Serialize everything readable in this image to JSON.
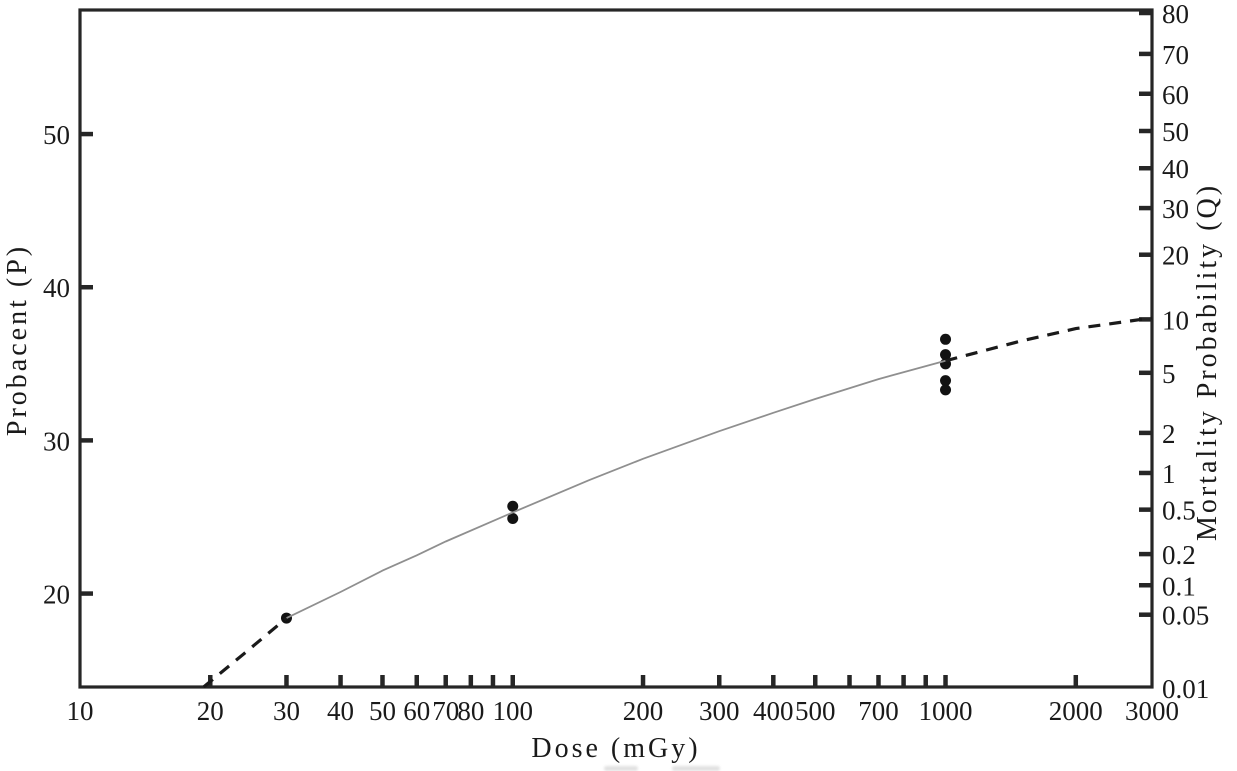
{
  "page": {
    "background": "#ffffff"
  },
  "colors": {
    "text": "#1a1a1a",
    "axis": "#262626",
    "curve": "#8f8f8f",
    "points": "#121212",
    "dash": "#1a1a1a"
  },
  "chart_data": {
    "type": "scatter",
    "title": "",
    "xlabel": "Dose (mGy)",
    "ylabel_left": "Probacent (P)",
    "ylabel_right": "Mortality Probability (Q)",
    "grid": false,
    "legend": null,
    "x_axis": {
      "scale": "log",
      "range": [
        10,
        3000
      ],
      "ticks_labeled": [
        10,
        20,
        30,
        40,
        50,
        60,
        70,
        80,
        100,
        200,
        300,
        400,
        500,
        700,
        1000,
        2000,
        3000
      ],
      "ticks_unlabeled": [
        90,
        600,
        800,
        900
      ]
    },
    "y_left_axis": {
      "scale": "linear",
      "range": [
        13.9,
        58.1
      ],
      "ticks": [
        20,
        30,
        40,
        50
      ]
    },
    "y_right_axis": {
      "scale": "probit_percent",
      "ticks": [
        80,
        70,
        60,
        50,
        40,
        30,
        20,
        10,
        5,
        2,
        1,
        0.5,
        0.2,
        0.1,
        0.05,
        0.01
      ]
    },
    "series": [
      {
        "name": "observed-mortality-points",
        "type": "scatter",
        "points": [
          {
            "dose": 30,
            "P": 18.4
          },
          {
            "dose": 100,
            "P": 25.7
          },
          {
            "dose": 100,
            "P": 24.9
          },
          {
            "dose": 1000,
            "P": 36.6
          },
          {
            "dose": 1000,
            "P": 35.6
          },
          {
            "dose": 1000,
            "P": 35.0
          },
          {
            "dose": 1000,
            "P": 33.9
          },
          {
            "dose": 1000,
            "P": 33.3
          }
        ]
      },
      {
        "name": "fitted-curve-solid",
        "type": "line",
        "style": "solid",
        "points": [
          [
            30,
            18.4
          ],
          [
            40,
            20.1
          ],
          [
            50,
            21.5
          ],
          [
            60,
            22.5
          ],
          [
            70,
            23.4
          ],
          [
            100,
            25.3
          ],
          [
            150,
            27.4
          ],
          [
            200,
            28.8
          ],
          [
            300,
            30.6
          ],
          [
            400,
            31.8
          ],
          [
            500,
            32.7
          ],
          [
            700,
            34.0
          ],
          [
            1000,
            35.2
          ]
        ]
      },
      {
        "name": "extrapolation-dashed-left",
        "type": "line",
        "style": "dashed",
        "points": [
          [
            19.3,
            13.9
          ],
          [
            24,
            16.1
          ],
          [
            30,
            18.4
          ]
        ]
      },
      {
        "name": "extrapolation-dashed-right",
        "type": "line",
        "style": "dashed",
        "points": [
          [
            1000,
            35.2
          ],
          [
            1500,
            36.5
          ],
          [
            2000,
            37.3
          ],
          [
            3000,
            38.0
          ]
        ]
      }
    ]
  }
}
